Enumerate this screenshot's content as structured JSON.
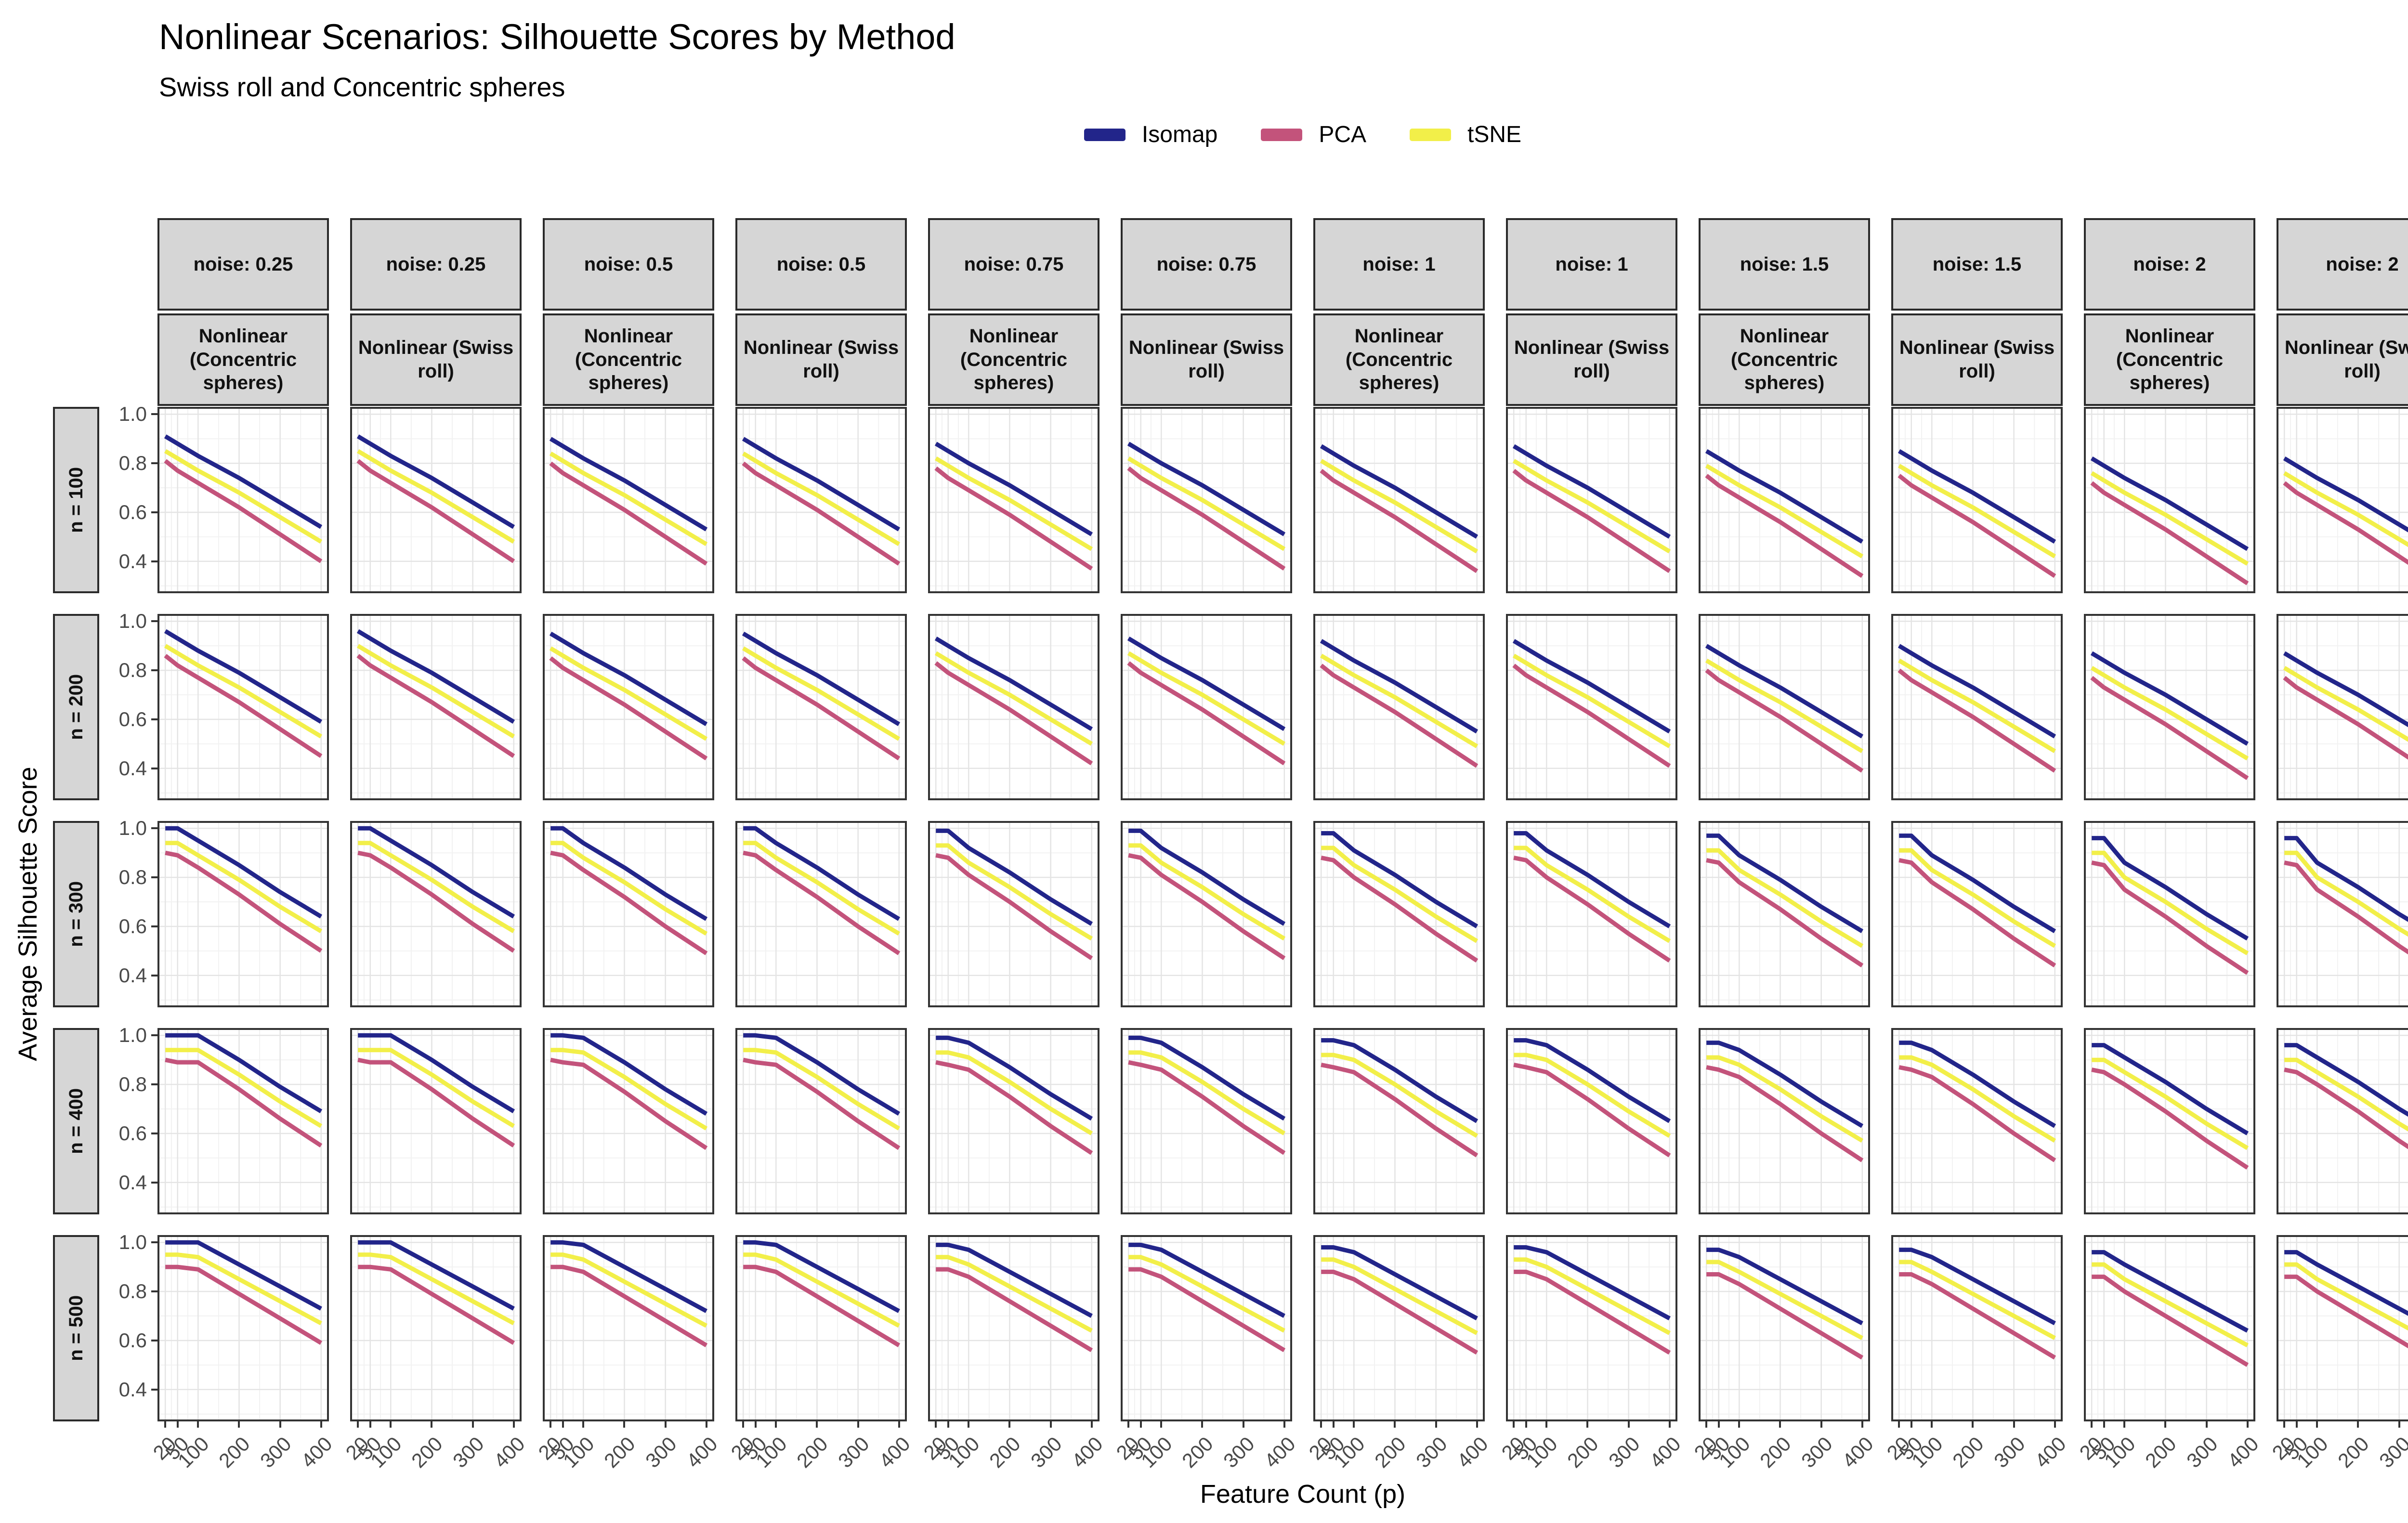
{
  "title": "Nonlinear Scenarios: Silhouette Scores by Method",
  "subtitle": "Swiss roll and Concentric spheres",
  "legend": {
    "items": [
      {
        "label": "Isomap",
        "color": "#22258a"
      },
      {
        "label": "PCA",
        "color": "#c3537b"
      },
      {
        "label": "tSNE",
        "color": "#f2ef49"
      }
    ]
  },
  "axes": {
    "x": {
      "title": "Feature Count (p)",
      "ticks": [
        20,
        50,
        100,
        200,
        300,
        400
      ],
      "range": [
        1,
        419
      ],
      "minor": [
        35,
        75,
        150,
        250,
        350
      ]
    },
    "y": {
      "title": "Average Silhouette Score",
      "ticks": [
        1.0,
        0.8,
        0.6,
        0.4
      ],
      "tick_labels": [
        "1.0",
        "0.8",
        "0.6",
        "0.4"
      ],
      "range": [
        0.27,
        1.03
      ],
      "minor": [
        0.9,
        0.7,
        0.5,
        0.3
      ]
    }
  },
  "facets": {
    "columns": [
      {
        "noise_label": "noise: 0.25",
        "noise": "0.25",
        "scenario": "Nonlinear (Concentric spheres)"
      },
      {
        "noise_label": "noise: 0.25",
        "noise": "0.25",
        "scenario": "Nonlinear (Swiss roll)"
      },
      {
        "noise_label": "noise: 0.5",
        "noise": "0.5",
        "scenario": "Nonlinear (Concentric spheres)"
      },
      {
        "noise_label": "noise: 0.5",
        "noise": "0.5",
        "scenario": "Nonlinear (Swiss roll)"
      },
      {
        "noise_label": "noise: 0.75",
        "noise": "0.75",
        "scenario": "Nonlinear (Concentric spheres)"
      },
      {
        "noise_label": "noise: 0.75",
        "noise": "0.75",
        "scenario": "Nonlinear (Swiss roll)"
      },
      {
        "noise_label": "noise: 1",
        "noise": "1",
        "scenario": "Nonlinear (Concentric spheres)"
      },
      {
        "noise_label": "noise: 1",
        "noise": "1",
        "scenario": "Nonlinear (Swiss roll)"
      },
      {
        "noise_label": "noise: 1.5",
        "noise": "1.5",
        "scenario": "Nonlinear (Concentric spheres)"
      },
      {
        "noise_label": "noise: 1.5",
        "noise": "1.5",
        "scenario": "Nonlinear (Swiss roll)"
      },
      {
        "noise_label": "noise: 2",
        "noise": "2",
        "scenario": "Nonlinear (Concentric spheres)"
      },
      {
        "noise_label": "noise: 2",
        "noise": "2",
        "scenario": "Nonlinear (Swiss roll)"
      }
    ],
    "rows": [
      {
        "label": "n = 100",
        "n": "100"
      },
      {
        "label": "n = 200",
        "n": "200"
      },
      {
        "label": "n = 300",
        "n": "300"
      },
      {
        "label": "n = 400",
        "n": "400"
      },
      {
        "label": "n = 500",
        "n": "500"
      }
    ]
  },
  "chart_data": {
    "type": "line",
    "title": "Nonlinear Scenarios: Silhouette Scores by Method",
    "subtitle": "Swiss roll and Concentric spheres",
    "xlabel": "Feature Count (p)",
    "ylabel": "Average Silhouette Score",
    "legend_position": "top",
    "grid": true,
    "x": [
      20,
      50,
      100,
      200,
      300,
      400
    ],
    "xlim": [
      1,
      419
    ],
    "ylim": [
      0.27,
      1.03
    ],
    "series_names": [
      "Isomap",
      "PCA",
      "tSNE"
    ],
    "note": "values[n][noise] gives y-values per method at x; same curves apply to both scenario facets of that noise level",
    "values": {
      "100": {
        "0.25": {
          "Isomap": [
            0.91,
            0.88,
            0.83,
            0.74,
            0.64,
            0.54
          ],
          "tSNE": [
            0.85,
            0.82,
            0.77,
            0.68,
            0.58,
            0.48
          ],
          "PCA": [
            0.81,
            0.77,
            0.72,
            0.62,
            0.51,
            0.4
          ]
        },
        "0.5": {
          "Isomap": [
            0.9,
            0.87,
            0.82,
            0.73,
            0.63,
            0.53
          ],
          "tSNE": [
            0.84,
            0.81,
            0.76,
            0.67,
            0.57,
            0.47
          ],
          "PCA": [
            0.8,
            0.76,
            0.71,
            0.61,
            0.5,
            0.39
          ]
        },
        "0.75": {
          "Isomap": [
            0.88,
            0.85,
            0.8,
            0.71,
            0.61,
            0.51
          ],
          "tSNE": [
            0.82,
            0.79,
            0.74,
            0.65,
            0.55,
            0.45
          ],
          "PCA": [
            0.78,
            0.74,
            0.69,
            0.59,
            0.48,
            0.37
          ]
        },
        "1": {
          "Isomap": [
            0.87,
            0.84,
            0.79,
            0.7,
            0.6,
            0.5
          ],
          "tSNE": [
            0.81,
            0.78,
            0.73,
            0.64,
            0.54,
            0.44
          ],
          "PCA": [
            0.77,
            0.73,
            0.68,
            0.58,
            0.47,
            0.36
          ]
        },
        "1.5": {
          "Isomap": [
            0.85,
            0.82,
            0.77,
            0.68,
            0.58,
            0.48
          ],
          "tSNE": [
            0.79,
            0.76,
            0.71,
            0.62,
            0.52,
            0.42
          ],
          "PCA": [
            0.75,
            0.71,
            0.66,
            0.56,
            0.45,
            0.34
          ]
        },
        "2": {
          "Isomap": [
            0.82,
            0.79,
            0.74,
            0.65,
            0.55,
            0.45
          ],
          "tSNE": [
            0.76,
            0.73,
            0.68,
            0.59,
            0.49,
            0.39
          ],
          "PCA": [
            0.72,
            0.68,
            0.63,
            0.53,
            0.42,
            0.31
          ]
        }
      },
      "200": {
        "0.25": {
          "Isomap": [
            0.96,
            0.93,
            0.88,
            0.79,
            0.69,
            0.59
          ],
          "tSNE": [
            0.9,
            0.87,
            0.82,
            0.73,
            0.63,
            0.53
          ],
          "PCA": [
            0.86,
            0.82,
            0.77,
            0.67,
            0.56,
            0.45
          ]
        },
        "0.5": {
          "Isomap": [
            0.95,
            0.92,
            0.87,
            0.78,
            0.68,
            0.58
          ],
          "tSNE": [
            0.89,
            0.86,
            0.81,
            0.72,
            0.62,
            0.52
          ],
          "PCA": [
            0.85,
            0.81,
            0.76,
            0.66,
            0.55,
            0.44
          ]
        },
        "0.75": {
          "Isomap": [
            0.93,
            0.9,
            0.85,
            0.76,
            0.66,
            0.56
          ],
          "tSNE": [
            0.87,
            0.84,
            0.79,
            0.7,
            0.6,
            0.5
          ],
          "PCA": [
            0.83,
            0.79,
            0.74,
            0.64,
            0.53,
            0.42
          ]
        },
        "1": {
          "Isomap": [
            0.92,
            0.89,
            0.84,
            0.75,
            0.65,
            0.55
          ],
          "tSNE": [
            0.86,
            0.83,
            0.78,
            0.69,
            0.59,
            0.49
          ],
          "PCA": [
            0.82,
            0.78,
            0.73,
            0.63,
            0.52,
            0.41
          ]
        },
        "1.5": {
          "Isomap": [
            0.9,
            0.87,
            0.82,
            0.73,
            0.63,
            0.53
          ],
          "tSNE": [
            0.84,
            0.81,
            0.76,
            0.67,
            0.57,
            0.47
          ],
          "PCA": [
            0.8,
            0.76,
            0.71,
            0.61,
            0.5,
            0.39
          ]
        },
        "2": {
          "Isomap": [
            0.87,
            0.84,
            0.79,
            0.7,
            0.6,
            0.5
          ],
          "tSNE": [
            0.81,
            0.78,
            0.73,
            0.64,
            0.54,
            0.44
          ],
          "PCA": [
            0.77,
            0.73,
            0.68,
            0.58,
            0.47,
            0.36
          ]
        }
      },
      "300": {
        "0.25": {
          "Isomap": [
            1.0,
            1.0,
            0.95,
            0.85,
            0.74,
            0.64
          ],
          "tSNE": [
            0.94,
            0.94,
            0.89,
            0.79,
            0.68,
            0.58
          ],
          "PCA": [
            0.9,
            0.89,
            0.84,
            0.73,
            0.61,
            0.5
          ]
        },
        "0.5": {
          "Isomap": [
            1.0,
            1.0,
            0.94,
            0.84,
            0.73,
            0.63
          ],
          "tSNE": [
            0.94,
            0.94,
            0.88,
            0.78,
            0.67,
            0.57
          ],
          "PCA": [
            0.9,
            0.89,
            0.83,
            0.72,
            0.6,
            0.49
          ]
        },
        "0.75": {
          "Isomap": [
            0.99,
            0.99,
            0.92,
            0.82,
            0.71,
            0.61
          ],
          "tSNE": [
            0.93,
            0.93,
            0.86,
            0.76,
            0.65,
            0.55
          ],
          "PCA": [
            0.89,
            0.88,
            0.81,
            0.7,
            0.58,
            0.47
          ]
        },
        "1": {
          "Isomap": [
            0.98,
            0.98,
            0.91,
            0.81,
            0.7,
            0.6
          ],
          "tSNE": [
            0.92,
            0.92,
            0.85,
            0.75,
            0.64,
            0.54
          ],
          "PCA": [
            0.88,
            0.87,
            0.8,
            0.69,
            0.57,
            0.46
          ]
        },
        "1.5": {
          "Isomap": [
            0.97,
            0.97,
            0.89,
            0.79,
            0.68,
            0.58
          ],
          "tSNE": [
            0.91,
            0.91,
            0.83,
            0.73,
            0.62,
            0.52
          ],
          "PCA": [
            0.87,
            0.86,
            0.78,
            0.67,
            0.55,
            0.44
          ]
        },
        "2": {
          "Isomap": [
            0.96,
            0.96,
            0.86,
            0.76,
            0.65,
            0.55
          ],
          "tSNE": [
            0.9,
            0.9,
            0.8,
            0.7,
            0.59,
            0.49
          ],
          "PCA": [
            0.86,
            0.85,
            0.75,
            0.64,
            0.52,
            0.41
          ]
        }
      },
      "400": {
        "0.25": {
          "Isomap": [
            1.0,
            1.0,
            1.0,
            0.9,
            0.79,
            0.69
          ],
          "tSNE": [
            0.94,
            0.94,
            0.94,
            0.84,
            0.73,
            0.63
          ],
          "PCA": [
            0.9,
            0.89,
            0.89,
            0.78,
            0.66,
            0.55
          ]
        },
        "0.5": {
          "Isomap": [
            1.0,
            1.0,
            0.99,
            0.89,
            0.78,
            0.68
          ],
          "tSNE": [
            0.94,
            0.94,
            0.93,
            0.83,
            0.72,
            0.62
          ],
          "PCA": [
            0.9,
            0.89,
            0.88,
            0.77,
            0.65,
            0.54
          ]
        },
        "0.75": {
          "Isomap": [
            0.99,
            0.99,
            0.97,
            0.87,
            0.76,
            0.66
          ],
          "tSNE": [
            0.93,
            0.93,
            0.91,
            0.81,
            0.7,
            0.6
          ],
          "PCA": [
            0.89,
            0.88,
            0.86,
            0.75,
            0.63,
            0.52
          ]
        },
        "1": {
          "Isomap": [
            0.98,
            0.98,
            0.96,
            0.86,
            0.75,
            0.65
          ],
          "tSNE": [
            0.92,
            0.92,
            0.9,
            0.8,
            0.69,
            0.59
          ],
          "PCA": [
            0.88,
            0.87,
            0.85,
            0.74,
            0.62,
            0.51
          ]
        },
        "1.5": {
          "Isomap": [
            0.97,
            0.97,
            0.94,
            0.84,
            0.73,
            0.63
          ],
          "tSNE": [
            0.91,
            0.91,
            0.88,
            0.78,
            0.67,
            0.57
          ],
          "PCA": [
            0.87,
            0.86,
            0.83,
            0.72,
            0.6,
            0.49
          ]
        },
        "2": {
          "Isomap": [
            0.96,
            0.96,
            0.91,
            0.81,
            0.7,
            0.6
          ],
          "tSNE": [
            0.9,
            0.9,
            0.85,
            0.75,
            0.64,
            0.54
          ],
          "PCA": [
            0.86,
            0.85,
            0.8,
            0.69,
            0.57,
            0.46
          ]
        }
      },
      "500": {
        "0.25": {
          "Isomap": [
            1.0,
            1.0,
            1.0,
            0.91,
            0.82,
            0.73
          ],
          "tSNE": [
            0.95,
            0.95,
            0.94,
            0.85,
            0.76,
            0.67
          ],
          "PCA": [
            0.9,
            0.9,
            0.89,
            0.79,
            0.69,
            0.59
          ]
        },
        "0.5": {
          "Isomap": [
            1.0,
            1.0,
            0.99,
            0.9,
            0.81,
            0.72
          ],
          "tSNE": [
            0.95,
            0.95,
            0.93,
            0.84,
            0.75,
            0.66
          ],
          "PCA": [
            0.9,
            0.9,
            0.88,
            0.78,
            0.68,
            0.58
          ]
        },
        "0.75": {
          "Isomap": [
            0.99,
            0.99,
            0.97,
            0.88,
            0.79,
            0.7
          ],
          "tSNE": [
            0.94,
            0.94,
            0.91,
            0.82,
            0.73,
            0.64
          ],
          "PCA": [
            0.89,
            0.89,
            0.86,
            0.76,
            0.66,
            0.56
          ]
        },
        "1": {
          "Isomap": [
            0.98,
            0.98,
            0.96,
            0.87,
            0.78,
            0.69
          ],
          "tSNE": [
            0.93,
            0.93,
            0.9,
            0.81,
            0.72,
            0.63
          ],
          "PCA": [
            0.88,
            0.88,
            0.85,
            0.75,
            0.65,
            0.55
          ]
        },
        "1.5": {
          "Isomap": [
            0.97,
            0.97,
            0.94,
            0.85,
            0.76,
            0.67
          ],
          "tSNE": [
            0.92,
            0.92,
            0.88,
            0.79,
            0.7,
            0.61
          ],
          "PCA": [
            0.87,
            0.87,
            0.83,
            0.73,
            0.63,
            0.53
          ]
        },
        "2": {
          "Isomap": [
            0.96,
            0.96,
            0.91,
            0.82,
            0.73,
            0.64
          ],
          "tSNE": [
            0.91,
            0.91,
            0.85,
            0.76,
            0.67,
            0.58
          ],
          "PCA": [
            0.86,
            0.86,
            0.8,
            0.7,
            0.6,
            0.5
          ]
        }
      }
    }
  },
  "style": {
    "series_colors": {
      "Isomap": "#22258a",
      "PCA": "#c3537b",
      "tSNE": "#f2ef49"
    },
    "strip_bg": "#d6d6d6",
    "strip_border": "#2a2a2a",
    "panel_border": "#333333",
    "grid_major": "#e4e4e4",
    "grid_minor": "#f2f2f2",
    "tick_color": "#333333",
    "tick_text": "#4a4a4a"
  }
}
